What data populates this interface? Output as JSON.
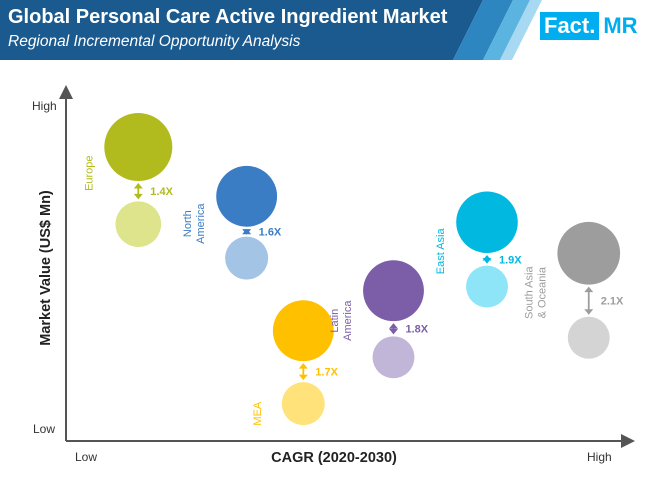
{
  "header": {
    "title": "Global Personal Care Active Ingredient Market",
    "subtitle": "Regional Incremental Opportunity Analysis"
  },
  "logo": {
    "fact": "Fact.",
    "mr": "MR"
  },
  "colors": {
    "header_bg": "#1b5a8f",
    "stripe_1": "#2e86c1",
    "stripe_2": "#5bb3e0",
    "stripe_3": "#a7d9f2",
    "logo_blue": "#00aeef"
  },
  "chart_data": {
    "type": "bubble",
    "title": "",
    "xlabel": "CAGR (2020-2030)",
    "ylabel": "Market Value (US$ Mn)",
    "x_tick_labels": [
      "Low",
      "High"
    ],
    "y_tick_labels": [
      "Low",
      "High"
    ],
    "xlim": [
      0,
      100
    ],
    "ylim": [
      0,
      100
    ],
    "series": [
      {
        "name": "Europe",
        "label_lines": [
          "Europe"
        ],
        "multiplier": "1.4X",
        "color": "#b2bb1e",
        "base_color": "#dde48c",
        "arrow_color": "#b2bb1e",
        "current": {
          "x": 10.6,
          "y": 85.3,
          "size": 100
        },
        "base": {
          "x": 10.6,
          "y": 61.2,
          "size": 45
        }
      },
      {
        "name": "North America",
        "label_lines": [
          "North",
          "America"
        ],
        "multiplier": "1.6X",
        "color": "#3a7dc4",
        "base_color": "#a4c4e6",
        "arrow_color": "#3a7dc4",
        "current": {
          "x": 30.3,
          "y": 69.9,
          "size": 80
        },
        "base": {
          "x": 30.3,
          "y": 50.6,
          "size": 40
        }
      },
      {
        "name": "MEA",
        "label_lines": [
          "MEA"
        ],
        "multiplier": "1.7X",
        "color": "#ffc000",
        "base_color": "#ffe27a",
        "arrow_color": "#ffc000",
        "current": {
          "x": 40.6,
          "y": 27.9,
          "size": 80
        },
        "base": {
          "x": 40.6,
          "y": 5.1,
          "size": 40
        }
      },
      {
        "name": "Latin America",
        "label_lines": [
          "Latin",
          "America"
        ],
        "multiplier": "1.8X",
        "color": "#7b5ea7",
        "base_color": "#c1b5d8",
        "arrow_color": "#7b5ea7",
        "current": {
          "x": 57.0,
          "y": 40.4,
          "size": 80
        },
        "base": {
          "x": 57.0,
          "y": 19.6,
          "size": 38
        }
      },
      {
        "name": "East Asia",
        "label_lines": [
          "East Asia"
        ],
        "multiplier": "1.9X",
        "color": "#00b8e0",
        "base_color": "#8ee5f7",
        "arrow_color": "#00b8e0",
        "current": {
          "x": 74.0,
          "y": 61.8,
          "size": 82
        },
        "base": {
          "x": 74.0,
          "y": 41.7,
          "size": 38
        }
      },
      {
        "name": "South Asia & Oceania",
        "label_lines": [
          "South Asia",
          "& Oceania"
        ],
        "multiplier": "2.1X",
        "color": "#9d9d9d",
        "base_color": "#d4d4d4",
        "arrow_color": "#9d9d9d",
        "current": {
          "x": 92.5,
          "y": 52.1,
          "size": 85
        },
        "base": {
          "x": 92.5,
          "y": 25.7,
          "size": 38
        }
      }
    ]
  }
}
